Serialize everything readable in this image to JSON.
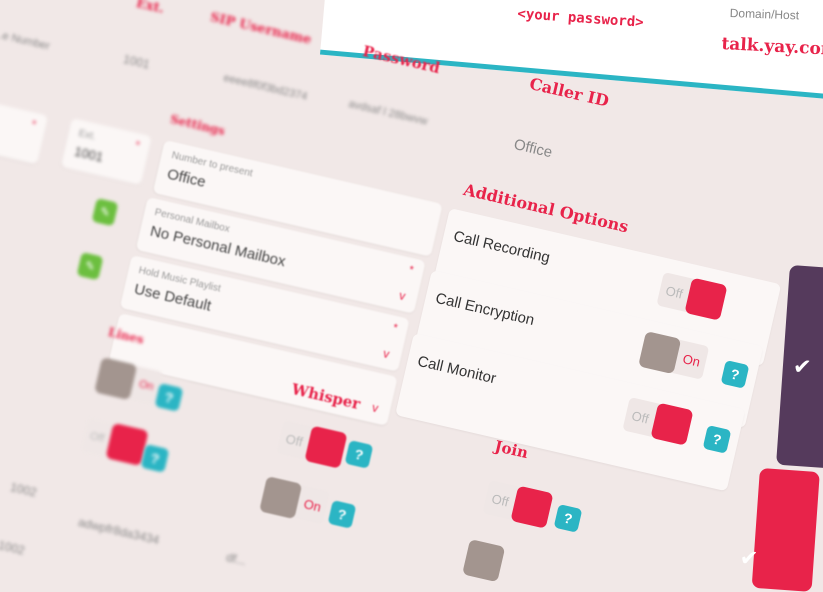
{
  "top_card": {
    "password_placeholder": "<your password>",
    "domain_label": "Domain/Host",
    "domain_value": "talk.yay.com"
  },
  "columns": {
    "number": "...e Number",
    "ext": "Ext.",
    "sip_username": "SIP Username",
    "password": "Password",
    "caller_id": "Caller ID"
  },
  "row1": {
    "ext": "1001",
    "sip_username": "eeee8f0f3bd2374",
    "password": "avdsaf l 28bwvw",
    "caller_id": "Office"
  },
  "settings": {
    "title": "Settings",
    "ext_label": "Ext.",
    "ext_value": "1001",
    "number_label": "Number to present",
    "number_value": "Office",
    "mailbox_label": "Personal Mailbox",
    "mailbox_value": "No Personal Mailbox",
    "hold_label": "Hold Music Playlist",
    "hold_value": "Use Default",
    "required": "*",
    "chevron": "v"
  },
  "additional": {
    "title": "Additional Options",
    "options": [
      {
        "label": "Call Recording",
        "state": "Off"
      },
      {
        "label": "Call Encryption",
        "state": "On"
      },
      {
        "label": "Call Monitor",
        "state": "Off"
      }
    ]
  },
  "sections": {
    "lines": "Lines",
    "whisper": "Whisper",
    "join": "Join"
  },
  "toggles": {
    "on": "On",
    "off": "Off",
    "help": "?"
  },
  "row2": {
    "ext": "1002",
    "sip_username": "adwpfr8da3434",
    "ext2": "1002",
    "password": "df..."
  },
  "colors": {
    "accent": "#e8234a",
    "help": "#2bb5c4",
    "save": "#553a5c",
    "knob_off": "#a3958f",
    "icon_ok": "#6cbf3f"
  },
  "icons": {
    "check": "✔",
    "edit": "✎"
  }
}
